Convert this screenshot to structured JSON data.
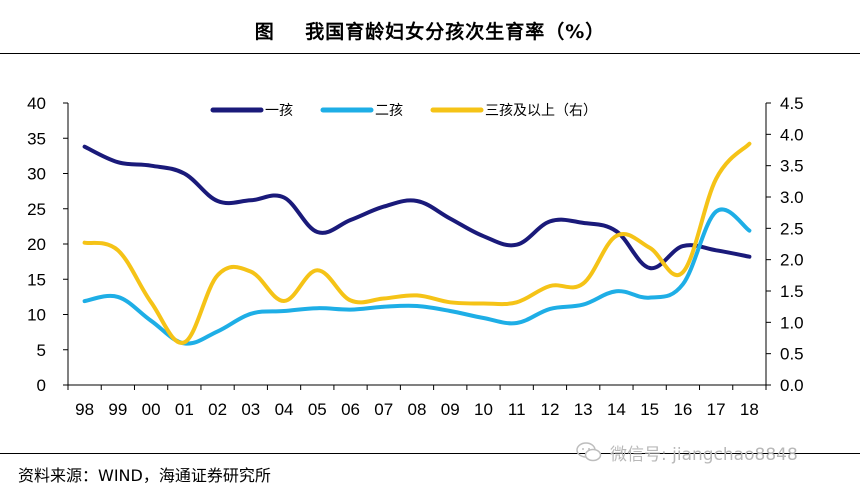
{
  "title": "图    我国育龄妇女分孩次生育率（%）",
  "source": "资料来源：WIND，海通证券研究所",
  "watermark": "微信号: jiangchao8848",
  "colors": {
    "series_first": "#1a1a7a",
    "series_second": "#1eaee6",
    "series_third": "#f5c317",
    "axis": "#000000"
  },
  "chart_data": {
    "type": "line",
    "title": "图    我国育龄妇女分孩次生育率（%）",
    "xlabel": "",
    "ylabel": "",
    "categories": [
      "98",
      "99",
      "00",
      "01",
      "02",
      "03",
      "04",
      "05",
      "06",
      "07",
      "08",
      "09",
      "10",
      "11",
      "12",
      "13",
      "14",
      "15",
      "16",
      "17",
      "18"
    ],
    "y_left": {
      "range": [
        0,
        40
      ],
      "ticks": [
        "0",
        "5",
        "10",
        "15",
        "20",
        "25",
        "30",
        "35",
        "40"
      ]
    },
    "y_right": {
      "range": [
        0,
        4.5
      ],
      "ticks": [
        "0.0",
        "0.5",
        "1.0",
        "1.5",
        "2.0",
        "2.5",
        "3.0",
        "3.5",
        "4.0",
        "4.5"
      ]
    },
    "grid": false,
    "legend_position": "top",
    "series": [
      {
        "name": "一孩",
        "axis": "left",
        "color": "#1a1a7a",
        "values": [
          33.8,
          31.6,
          31.1,
          30.0,
          26.1,
          26.2,
          26.6,
          21.7,
          23.4,
          25.3,
          26.1,
          23.6,
          21.1,
          19.9,
          23.2,
          23.0,
          21.8,
          16.6,
          19.7,
          19.1,
          18.2
        ]
      },
      {
        "name": "二孩",
        "axis": "left",
        "color": "#1eaee6",
        "values": [
          11.9,
          12.5,
          9.1,
          5.9,
          7.6,
          10.1,
          10.5,
          10.9,
          10.7,
          11.1,
          11.2,
          10.5,
          9.5,
          8.8,
          10.8,
          11.4,
          13.3,
          12.4,
          14.3,
          24.6,
          21.9
        ]
      },
      {
        "name": "三孩及以上（右）",
        "axis": "right",
        "color": "#f5c317",
        "values": [
          2.27,
          2.15,
          1.32,
          0.68,
          1.75,
          1.81,
          1.34,
          1.83,
          1.35,
          1.38,
          1.43,
          1.32,
          1.3,
          1.32,
          1.58,
          1.62,
          2.38,
          2.19,
          1.8,
          3.29,
          3.85
        ]
      }
    ]
  }
}
